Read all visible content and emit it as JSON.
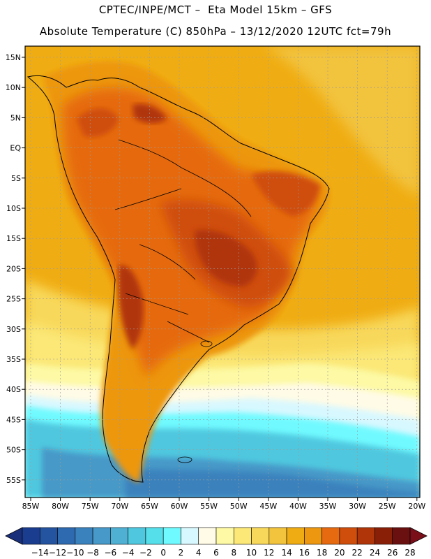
{
  "title": {
    "line1": "CPTEC/INPE/MCT –  Eta Model 15km – GFS",
    "line2": "Absolute Temperature (C) 850hPa – 13/12/2020 12UTC fct=79h"
  },
  "axes": {
    "lat_labels": [
      "15N",
      "10N",
      "5N",
      "EQ",
      "5S",
      "10S",
      "15S",
      "20S",
      "25S",
      "30S",
      "35S",
      "40S",
      "45S",
      "50S",
      "55S"
    ],
    "lon_labels": [
      "85W",
      "80W",
      "75W",
      "70W",
      "65W",
      "60W",
      "55W",
      "50W",
      "45W",
      "40W",
      "35W",
      "30W",
      "25W",
      "20W"
    ]
  },
  "colorbar": {
    "labels": [
      "-14",
      "-12",
      "-10",
      "-8",
      "-6",
      "-4",
      "-2",
      "0",
      "2",
      "4",
      "6",
      "8",
      "10",
      "12",
      "14",
      "16",
      "18",
      "20",
      "22",
      "24",
      "26",
      "28"
    ],
    "colors": [
      "#1a3d8f",
      "#24539f",
      "#2e6aaf",
      "#3a82bd",
      "#4699c8",
      "#4fb0d4",
      "#4fc8df",
      "#55dfea",
      "#6ffaff",
      "#d8f8ff",
      "#fffbe6",
      "#fdf9a4",
      "#fbe877",
      "#f8d85a",
      "#f2c33c",
      "#f0ad13",
      "#ed9710",
      "#e66a10",
      "#cf4e0c",
      "#b03509",
      "#8a1f08",
      "#6a1010"
    ]
  },
  "colors": {
    "ocean_warm": "#f0ad13",
    "land": "#e8841a",
    "land_hot": "#b94a0d",
    "cold": "#4fc8df",
    "coldest": "#2e6aaf"
  }
}
